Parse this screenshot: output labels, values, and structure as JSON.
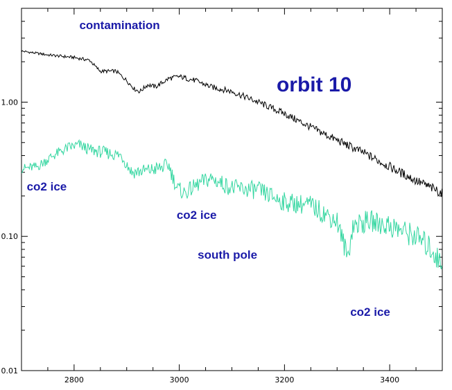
{
  "chart_data": {
    "type": "line",
    "title": "",
    "xlabel": "",
    "ylabel": "",
    "xlim": [
      2700,
      3500
    ],
    "ylim": [
      0.01,
      5
    ],
    "y_scale": "log",
    "grid": false,
    "x_ticks": [
      2800,
      3000,
      3200,
      3400
    ],
    "x_tick_labels": [
      "2800",
      "3000",
      "3200",
      "3400"
    ],
    "y_ticks": [
      0.01,
      0.1,
      1.0
    ],
    "y_tick_labels": [
      "0.01",
      "0.10",
      "1.00"
    ],
    "series": [
      {
        "color": "#000000",
        "points": [
          [
            2700,
            2.4
          ],
          [
            2750,
            2.25
          ],
          [
            2800,
            2.15
          ],
          [
            2830,
            2.05
          ],
          [
            2840,
            1.85
          ],
          [
            2850,
            1.7
          ],
          [
            2880,
            1.7
          ],
          [
            2900,
            1.45
          ],
          [
            2915,
            1.25
          ],
          [
            2925,
            1.2
          ],
          [
            2940,
            1.35
          ],
          [
            2955,
            1.3
          ],
          [
            2980,
            1.5
          ],
          [
            3000,
            1.55
          ],
          [
            3030,
            1.45
          ],
          [
            3060,
            1.3
          ],
          [
            3100,
            1.2
          ],
          [
            3150,
            1.0
          ],
          [
            3200,
            0.82
          ],
          [
            3250,
            0.65
          ],
          [
            3300,
            0.52
          ],
          [
            3350,
            0.42
          ],
          [
            3400,
            0.33
          ],
          [
            3450,
            0.26
          ],
          [
            3500,
            0.21
          ]
        ]
      },
      {
        "color": "#33d6a0",
        "points": [
          [
            2700,
            0.32
          ],
          [
            2730,
            0.33
          ],
          [
            2760,
            0.4
          ],
          [
            2790,
            0.46
          ],
          [
            2810,
            0.48
          ],
          [
            2830,
            0.44
          ],
          [
            2860,
            0.42
          ],
          [
            2890,
            0.4
          ],
          [
            2910,
            0.3
          ],
          [
            2940,
            0.31
          ],
          [
            2960,
            0.32
          ],
          [
            2980,
            0.34
          ],
          [
            2995,
            0.23
          ],
          [
            3010,
            0.21
          ],
          [
            3040,
            0.25
          ],
          [
            3060,
            0.27
          ],
          [
            3100,
            0.23
          ],
          [
            3150,
            0.22
          ],
          [
            3200,
            0.18
          ],
          [
            3250,
            0.17
          ],
          [
            3300,
            0.13
          ],
          [
            3320,
            0.07
          ],
          [
            3330,
            0.12
          ],
          [
            3360,
            0.13
          ],
          [
            3400,
            0.12
          ],
          [
            3450,
            0.1
          ],
          [
            3480,
            0.08
          ],
          [
            3500,
            0.06
          ]
        ]
      }
    ],
    "annotations": [
      {
        "text": "contamination",
        "x": 2810,
        "y": 3.5,
        "size": "medium"
      },
      {
        "text": "orbit 10",
        "x": 3185,
        "y": 1.2,
        "size": "large"
      },
      {
        "text": "co2  ice",
        "x": 2710,
        "y": 0.22,
        "size": "medium"
      },
      {
        "text": "co2  ice",
        "x": 2995,
        "y": 0.135,
        "size": "medium"
      },
      {
        "text": "south pole",
        "x": 3035,
        "y": 0.068,
        "size": "medium"
      },
      {
        "text": "co2  ice",
        "x": 3325,
        "y": 0.0255,
        "size": "medium"
      }
    ]
  }
}
